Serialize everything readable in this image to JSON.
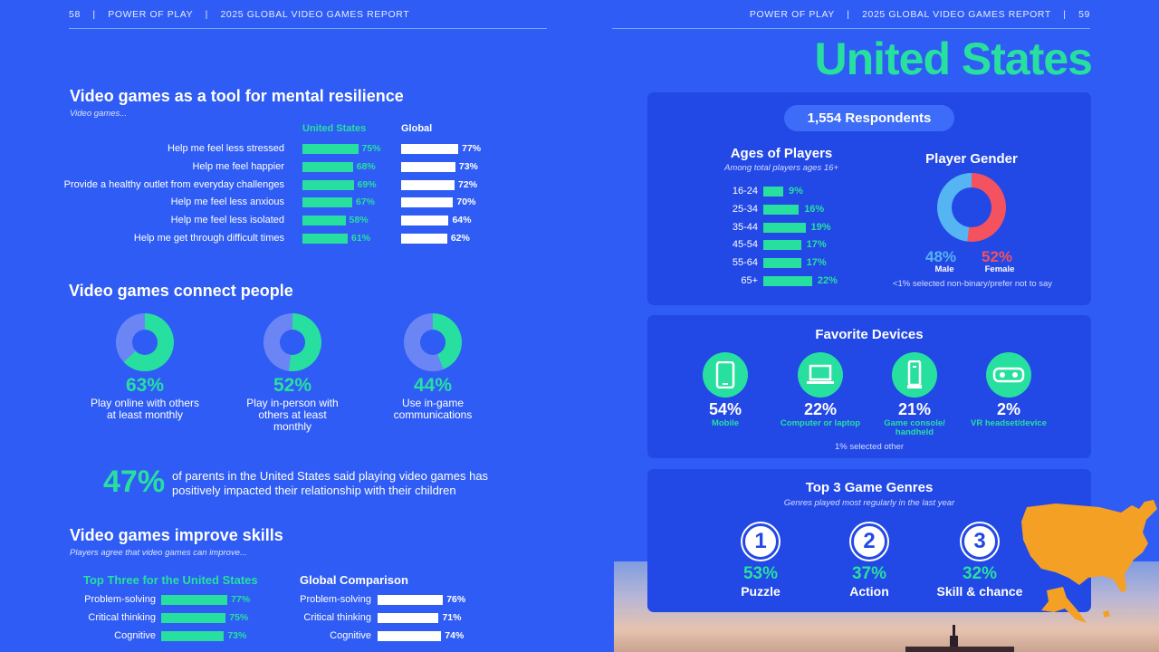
{
  "header": {
    "left_page": "58",
    "right_page": "59",
    "brand": "POWER OF PLAY",
    "report": "2025 GLOBAL VIDEO GAMES REPORT",
    "sep": "|"
  },
  "country_title": "United States",
  "resilience": {
    "title": "Video games as a tool for mental resilience",
    "subtitle": "Video games...",
    "col_us": "United States",
    "col_global": "Global",
    "rows": [
      {
        "label": "Help me feel less stressed",
        "us": 75,
        "us_text": "75%",
        "global": 77,
        "global_text": "77%"
      },
      {
        "label": "Help me feel happier",
        "us": 68,
        "us_text": "68%",
        "global": 73,
        "global_text": "73%"
      },
      {
        "label": "Provide a healthy outlet from everyday challenges",
        "us": 69,
        "us_text": "69%",
        "global": 72,
        "global_text": "72%"
      },
      {
        "label": "Help me feel less anxious",
        "us": 67,
        "us_text": "67%",
        "global": 70,
        "global_text": "70%"
      },
      {
        "label": "Help me feel less isolated",
        "us": 58,
        "us_text": "58%",
        "global": 64,
        "global_text": "64%"
      },
      {
        "label": "Help me get through difficult times",
        "us": 61,
        "us_text": "61%",
        "global": 62,
        "global_text": "62%"
      }
    ]
  },
  "connect": {
    "title": "Video games connect people",
    "items": [
      {
        "value": 63,
        "pct": "63%",
        "line1": "Play online with others",
        "line2": "at least monthly",
        "line3": ""
      },
      {
        "value": 52,
        "pct": "52%",
        "line1": "Play in-person with",
        "line2": "others at least",
        "line3": "monthly"
      },
      {
        "value": 44,
        "pct": "44%",
        "line1": "Use in-game",
        "line2": "communications",
        "line3": ""
      }
    ]
  },
  "parents": {
    "pct": "47%",
    "line1": "of parents in the United States said playing video games has",
    "line2": "positively impacted their relationship with their children"
  },
  "skills": {
    "title": "Video games improve skills",
    "subtitle": "Players agree that video games can improve...",
    "us_head": "Top Three for the United States",
    "global_head": "Global Comparison",
    "us_rows": [
      {
        "label": "Problem-solving",
        "value": 77,
        "pct": "77%"
      },
      {
        "label": "Critical thinking",
        "value": 75,
        "pct": "75%"
      },
      {
        "label": "Cognitive",
        "value": 73,
        "pct": "73%"
      }
    ],
    "global_rows": [
      {
        "label": "Problem-solving",
        "value": 76,
        "pct": "76%"
      },
      {
        "label": "Critical thinking",
        "value": 71,
        "pct": "71%"
      },
      {
        "label": "Cognitive",
        "value": 74,
        "pct": "74%"
      }
    ]
  },
  "respondents": "1,554 Respondents",
  "ages": {
    "title": "Ages of Players",
    "subtitle": "Among total players ages 16+",
    "rows": [
      {
        "label": "16-24",
        "value": 9,
        "pct": "9%"
      },
      {
        "label": "25-34",
        "value": 16,
        "pct": "16%"
      },
      {
        "label": "35-44",
        "value": 19,
        "pct": "19%"
      },
      {
        "label": "45-54",
        "value": 17,
        "pct": "17%"
      },
      {
        "label": "55-64",
        "value": 17,
        "pct": "17%"
      },
      {
        "label": "65+",
        "value": 22,
        "pct": "22%"
      }
    ]
  },
  "gender": {
    "title": "Player Gender",
    "male_pct": "48%",
    "male_label": "Male",
    "female_pct": "52%",
    "female_label": "Female",
    "note": "<1% selected non-binary/prefer not to say",
    "male_color": "#55b4f2",
    "female_color": "#f4525f"
  },
  "devices": {
    "title": "Favorite Devices",
    "items": [
      {
        "icon": "mobile-phone-icon",
        "pct": "54%",
        "line1": "Mobile",
        "line2": ""
      },
      {
        "icon": "laptop-icon",
        "pct": "22%",
        "line1": "Computer or laptop",
        "line2": ""
      },
      {
        "icon": "game-console-icon",
        "pct": "21%",
        "line1": "Game console/",
        "line2": "handheld"
      },
      {
        "icon": "vr-headset-icon",
        "pct": "2%",
        "line1": "VR headset/device",
        "line2": ""
      }
    ],
    "note": "1% selected other"
  },
  "genres": {
    "title": "Top 3 Game Genres",
    "subtitle": "Genres played most regularly in the last year",
    "items": [
      {
        "rank": "1",
        "pct": "53%",
        "name": "Puzzle"
      },
      {
        "rank": "2",
        "pct": "37%",
        "name": "Action"
      },
      {
        "rank": "3",
        "pct": "32%",
        "name": "Skill & chance"
      }
    ]
  },
  "colors": {
    "background": "#2f5cf4",
    "panel": "#2248e6",
    "accent_green": "#27e0a0",
    "map_orange": "#f4a024"
  }
}
